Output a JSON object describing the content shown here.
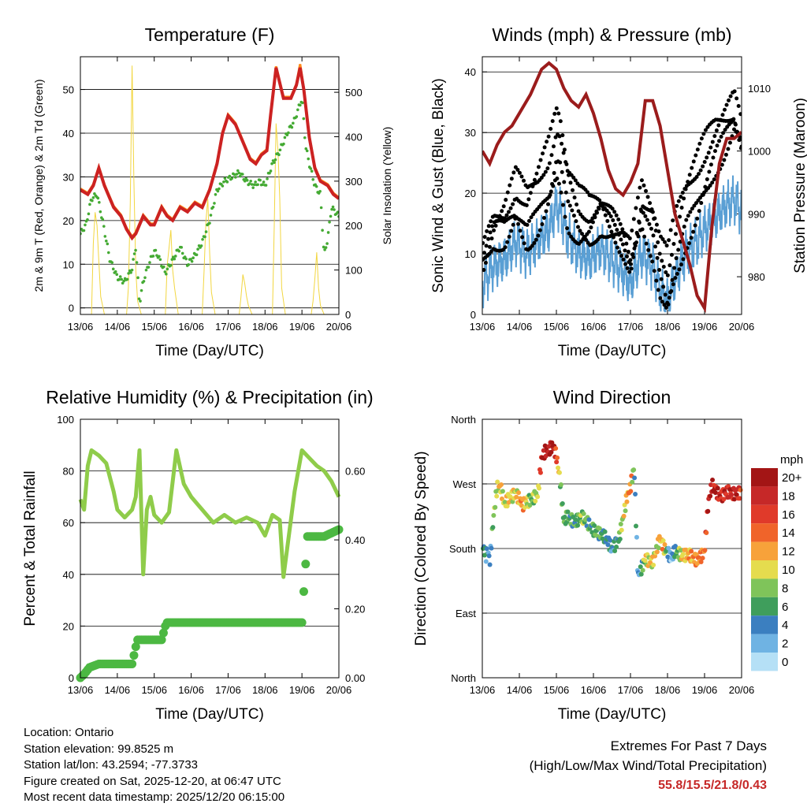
{
  "chart_data": [
    {
      "type": "line",
      "title": "Temperature (F)",
      "xlabel": "Time (Day/UTC)",
      "ylabel": "2m & 9m T (Red, Orange) & 2m Td (Green)",
      "y2label": "Solar Insolation (Yellow)",
      "x_ticks": [
        "13/06",
        "14/06",
        "15/06",
        "16/06",
        "17/06",
        "18/06",
        "19/06",
        "20/06"
      ],
      "xlim": [
        0,
        7
      ],
      "ylim": [
        -1.5,
        57.5
      ],
      "y_ticks": [
        0,
        10,
        20,
        30,
        40,
        50
      ],
      "y2lim": [
        0,
        580
      ],
      "y2_ticks": [
        0,
        100,
        200,
        300,
        400,
        500
      ],
      "series": [
        {
          "name": "2m T",
          "color": "#cc2222",
          "axis": "left",
          "x": [
            0,
            0.2,
            0.35,
            0.5,
            0.65,
            0.9,
            1.1,
            1.25,
            1.4,
            1.5,
            1.7,
            1.9,
            2.0,
            2.2,
            2.35,
            2.5,
            2.7,
            2.9,
            3.1,
            3.3,
            3.5,
            3.7,
            3.85,
            4.0,
            4.2,
            4.4,
            4.6,
            4.75,
            4.9,
            5.05,
            5.15,
            5.3,
            5.5,
            5.7,
            5.85,
            5.95,
            6.05,
            6.2,
            6.35,
            6.5,
            6.7,
            6.85,
            7.0
          ],
          "values": [
            27,
            26,
            28,
            32,
            28,
            23,
            21,
            18,
            16,
            17,
            21,
            19,
            19,
            23,
            21,
            20,
            23,
            22,
            24,
            23,
            27,
            33,
            40,
            44,
            42,
            38,
            34,
            33,
            35,
            36,
            44,
            55,
            48,
            48,
            51,
            55,
            50,
            39,
            32,
            29,
            28,
            26,
            25
          ]
        },
        {
          "name": "9m T",
          "color": "#ff8a1a",
          "axis": "left",
          "x": [
            0,
            0.2,
            0.35,
            0.5,
            0.65,
            0.9,
            1.1,
            1.25,
            1.4,
            1.5,
            1.7,
            1.9,
            2.0,
            2.2,
            2.35,
            2.5,
            2.7,
            2.9,
            3.1,
            3.3,
            3.5,
            3.7,
            3.85,
            4.0,
            4.2,
            4.4,
            4.6,
            4.75,
            4.9,
            5.05,
            5.15,
            5.3,
            5.5,
            5.7,
            5.85,
            5.95,
            6.05,
            6.2,
            6.35,
            6.5,
            6.7,
            6.85,
            7.0
          ],
          "values": [
            27.3,
            26.3,
            28.3,
            32.3,
            28.3,
            23.3,
            21.3,
            18.3,
            16.3,
            17.3,
            21.3,
            19.3,
            19.3,
            23.3,
            21.3,
            20.3,
            23.3,
            22.3,
            24.3,
            23.3,
            27.3,
            33.3,
            40.3,
            44.3,
            42.3,
            38.3,
            34.3,
            33.3,
            35.3,
            36.3,
            44.3,
            55.3,
            48.3,
            48.3,
            51.3,
            55.8,
            50.3,
            39.3,
            32.3,
            29.3,
            28.3,
            26.3,
            25.3
          ]
        },
        {
          "name": "2m Td",
          "color": "#44aa33",
          "axis": "left",
          "x": [
            0,
            0.15,
            0.3,
            0.45,
            0.6,
            0.8,
            1.0,
            1.2,
            1.4,
            1.5,
            1.6,
            1.7,
            1.85,
            2.0,
            2.1,
            2.3,
            2.5,
            2.7,
            2.9,
            3.1,
            3.3,
            3.5,
            3.7,
            3.9,
            4.1,
            4.3,
            4.5,
            4.7,
            4.85,
            5.0,
            5.2,
            5.4,
            5.6,
            5.8,
            6.0,
            6.1,
            6.2,
            6.35,
            6.5,
            6.6,
            6.7,
            6.8,
            7.0
          ],
          "values": [
            17,
            19,
            25,
            26,
            20,
            11,
            7,
            6,
            9,
            14,
            1,
            6,
            10,
            13,
            12,
            8,
            11,
            14,
            10,
            12,
            15,
            20,
            27,
            29,
            30,
            31,
            29,
            28,
            29,
            28,
            33,
            36,
            40,
            43,
            48,
            37,
            33,
            28,
            26,
            12,
            16,
            23,
            21
          ]
        },
        {
          "name": "Solar Insolation",
          "color": "#f2d640",
          "axis": "right",
          "style": "thin",
          "x": [
            0,
            0.3,
            0.35,
            0.4,
            0.45,
            0.5,
            0.55,
            0.65,
            1.25,
            1.3,
            1.35,
            1.4,
            1.45,
            1.5,
            1.55,
            1.65,
            2.3,
            2.35,
            2.4,
            2.45,
            2.5,
            2.55,
            2.65,
            3.3,
            3.35,
            3.4,
            3.45,
            3.5,
            3.55,
            3.65,
            4.3,
            4.35,
            4.4,
            4.45,
            4.5,
            4.55,
            4.65,
            5.2,
            5.25,
            5.3,
            5.35,
            5.4,
            5.45,
            5.55,
            6.25,
            6.3,
            6.35,
            6.4,
            6.45,
            6.5,
            6.6,
            7.0
          ],
          "values": [
            0,
            0,
            160,
            230,
            200,
            120,
            40,
            0,
            0,
            60,
            250,
            560,
            300,
            100,
            30,
            0,
            0,
            110,
            150,
            190,
            100,
            60,
            0,
            0,
            100,
            210,
            260,
            140,
            50,
            0,
            0,
            40,
            90,
            70,
            40,
            20,
            0,
            0,
            200,
            430,
            370,
            260,
            60,
            0,
            0,
            30,
            80,
            140,
            60,
            20,
            0,
            0
          ]
        }
      ]
    },
    {
      "type": "line",
      "title": "Winds (mph) & Pressure (mb)",
      "xlabel": "Time (Day/UTC)",
      "ylabel": "Sonic Wind & Gust (Blue, Black)",
      "y2label": "Station Pressure (Maroon)",
      "x_ticks": [
        "13/06",
        "14/06",
        "15/06",
        "16/06",
        "17/06",
        "18/06",
        "19/06",
        "20/06"
      ],
      "xlim": [
        0,
        7
      ],
      "ylim": [
        0,
        42.5
      ],
      "y_ticks": [
        0,
        10,
        20,
        30,
        40
      ],
      "y2lim": [
        974,
        1015
      ],
      "y2_ticks": [
        980,
        990,
        1000,
        1010
      ],
      "series": [
        {
          "name": "Sonic Wind",
          "color": "#5a9fd4",
          "axis": "left",
          "x": [
            0,
            0.3,
            0.6,
            0.9,
            1.2,
            1.5,
            1.8,
            2.0,
            2.1,
            2.3,
            2.6,
            2.9,
            3.2,
            3.5,
            3.8,
            4.0,
            4.3,
            4.6,
            4.8,
            5.0,
            5.2,
            5.5,
            5.8,
            6.0,
            6.3,
            6.6,
            6.8,
            7.0
          ],
          "values": [
            5,
            8,
            9,
            12,
            10,
            12,
            14,
            18,
            17,
            13,
            10,
            9,
            11,
            9,
            7,
            5,
            10,
            8,
            4,
            2,
            6,
            10,
            12,
            14,
            16,
            18,
            19,
            17
          ]
        },
        {
          "name": "Gust",
          "color": "#000000",
          "axis": "left",
          "style": "dots",
          "x": [
            0,
            0.3,
            0.6,
            0.9,
            1.2,
            1.5,
            1.8,
            2.0,
            2.1,
            2.3,
            2.6,
            2.9,
            3.2,
            3.5,
            3.8,
            4.0,
            4.3,
            4.6,
            4.8,
            5.0,
            5.2,
            5.5,
            5.8,
            6.0,
            6.3,
            6.6,
            6.8,
            7.0
          ],
          "values": [
            9,
            14,
            15,
            19,
            16,
            19,
            23,
            28,
            27,
            20,
            16,
            15,
            17,
            15,
            12,
            9,
            18,
            14,
            8,
            5,
            11,
            17,
            21,
            24,
            28,
            31,
            33,
            29
          ]
        },
        {
          "name": "Station Pressure",
          "color": "#9b1c1c",
          "axis": "right",
          "x": [
            0,
            0.2,
            0.4,
            0.6,
            0.8,
            1.0,
            1.3,
            1.6,
            1.8,
            2.0,
            2.2,
            2.4,
            2.6,
            2.8,
            3.0,
            3.2,
            3.4,
            3.6,
            3.8,
            4.0,
            4.2,
            4.4,
            4.6,
            4.8,
            5.0,
            5.2,
            5.4,
            5.6,
            5.8,
            6.0,
            6.2,
            6.3,
            6.4,
            6.5,
            6.6,
            6.8,
            7.0
          ],
          "values": [
            1000,
            998,
            1001,
            1003,
            1004,
            1006,
            1009,
            1013,
            1014,
            1013,
            1010,
            1008,
            1007,
            1009,
            1006,
            1002,
            997,
            994,
            993,
            995,
            998,
            1008,
            1008,
            1004,
            997,
            990,
            986,
            982,
            977,
            975,
            988,
            993,
            998,
            1000,
            1002,
            1002,
            1003
          ]
        }
      ]
    },
    {
      "type": "line",
      "title": "Relative Humidity (%) & Precipitation (in)",
      "xlabel": "Time (Day/UTC)",
      "ylabel": "Percent & Total Rainfall",
      "x_ticks": [
        "13/06",
        "14/06",
        "15/06",
        "16/06",
        "17/06",
        "18/06",
        "19/06",
        "20/06"
      ],
      "xlim": [
        0,
        7
      ],
      "ylim": [
        0,
        100
      ],
      "y_ticks": [
        0,
        20,
        40,
        60,
        80,
        100
      ],
      "y2lim": [
        0,
        0.75
      ],
      "y2_ticks": [
        0.0,
        0.2,
        0.4,
        0.6
      ],
      "y2_tick_labels": [
        "0.00",
        "0.20",
        "0.40",
        "0.60"
      ],
      "series": [
        {
          "name": "Relative Humidity",
          "color": "#8fcc4a",
          "axis": "left",
          "x": [
            0,
            0.1,
            0.2,
            0.3,
            0.5,
            0.7,
            0.9,
            1.0,
            1.2,
            1.4,
            1.5,
            1.6,
            1.7,
            1.8,
            1.9,
            2.0,
            2.2,
            2.4,
            2.6,
            2.8,
            3.0,
            3.3,
            3.6,
            3.9,
            4.2,
            4.5,
            4.8,
            5.0,
            5.2,
            5.4,
            5.5,
            5.6,
            5.8,
            6.0,
            6.2,
            6.4,
            6.6,
            6.8,
            7.0
          ],
          "values": [
            69,
            65,
            82,
            88,
            86,
            83,
            72,
            65,
            62,
            65,
            70,
            88,
            40,
            65,
            70,
            63,
            60,
            64,
            88,
            75,
            70,
            65,
            60,
            63,
            60,
            62,
            60,
            55,
            63,
            61,
            39,
            50,
            72,
            88,
            85,
            82,
            80,
            76,
            70
          ]
        },
        {
          "name": "Total Precipitation",
          "color": "#4cb842",
          "axis": "right",
          "style": "thick",
          "x": [
            0,
            0.1,
            0.25,
            0.5,
            0.9,
            1.4,
            1.5,
            1.55,
            2.2,
            2.3,
            2.35,
            4.0,
            5.0,
            6.0,
            6.05,
            6.15,
            6.3,
            6.6,
            7.0
          ],
          "values": [
            0.0,
            0.01,
            0.03,
            0.04,
            0.04,
            0.04,
            0.09,
            0.11,
            0.11,
            0.15,
            0.16,
            0.16,
            0.16,
            0.16,
            0.25,
            0.41,
            0.41,
            0.41,
            0.43
          ]
        }
      ]
    },
    {
      "type": "scatter",
      "title": "Wind Direction",
      "xlabel": "Time (Day/UTC)",
      "ylabel": "Direction (Colored By Speed)",
      "x_ticks": [
        "13/06",
        "14/06",
        "15/06",
        "16/06",
        "17/06",
        "18/06",
        "19/06",
        "20/06"
      ],
      "xlim": [
        0,
        7
      ],
      "y_ticks": [
        0,
        90,
        180,
        270,
        360
      ],
      "y_tick_labels": [
        "North",
        "East",
        "South",
        "West",
        "North"
      ],
      "ylim": [
        0,
        360
      ],
      "x": [
        0.05,
        0.1,
        0.15,
        0.2,
        0.3,
        0.4,
        0.5,
        0.6,
        0.7,
        0.9,
        1.1,
        1.3,
        1.5,
        1.6,
        1.7,
        1.8,
        1.9,
        2.0,
        2.1,
        2.2,
        2.3,
        2.5,
        2.7,
        2.9,
        3.1,
        3.3,
        3.5,
        3.7,
        3.9,
        4.0,
        4.1,
        4.2,
        4.4,
        4.6,
        4.8,
        4.9,
        5.0,
        5.1,
        5.2,
        5.4,
        5.6,
        5.8,
        6.0,
        6.1,
        6.2,
        6.4,
        6.6,
        6.8,
        7.0
      ],
      "values": [
        180,
        172,
        182,
        165,
        225,
        265,
        260,
        238,
        248,
        262,
        240,
        243,
        258,
        310,
        318,
        316,
        320,
        305,
        275,
        220,
        230,
        215,
        220,
        215,
        205,
        193,
        178,
        200,
        250,
        262,
        290,
        140,
        170,
        160,
        190,
        180,
        178,
        170,
        180,
        165,
        170,
        168,
        175,
        240,
        265,
        255,
        262,
        252,
        255
      ],
      "speeds": [
        6,
        5,
        5,
        4,
        9,
        10,
        13,
        10,
        12,
        11,
        14,
        8,
        10,
        19,
        22,
        20,
        22,
        16,
        9,
        7,
        8,
        7,
        9,
        7,
        8,
        6,
        5,
        8,
        12,
        16,
        6,
        3,
        11,
        11,
        12,
        13,
        5,
        2,
        6,
        12,
        13,
        14,
        15,
        19,
        20,
        19,
        18,
        20,
        17
      ],
      "colorbar": {
        "label": "mph",
        "levels": [
          "20+",
          "18",
          "16",
          "14",
          "12",
          "10",
          "8",
          "6",
          "4",
          "2",
          "0"
        ],
        "colors": [
          "#a31515",
          "#c62828",
          "#e03a2a",
          "#f0642a",
          "#f7a23a",
          "#e5dc4e",
          "#7fc45a",
          "#3f9e5c",
          "#3b7fc0",
          "#6fb3e3",
          "#b5e0f6"
        ]
      }
    }
  ],
  "footer": {
    "location": "Location: Ontario",
    "elevation": "Station elevation: 99.8525 m",
    "latlon": "Station lat/lon: 43.2594; -77.3733",
    "created": "Figure created on Sat, 2025-12-20, at 06:47 UTC",
    "recent": "Most recent data timestamp: 2025/12/20 06:15:00"
  },
  "extremes": {
    "title": "Extremes For Past 7 Days",
    "subtitle": "(High/Low/Max Wind/Total Precipitation)",
    "values": "55.8/15.5/21.8/0.43"
  }
}
